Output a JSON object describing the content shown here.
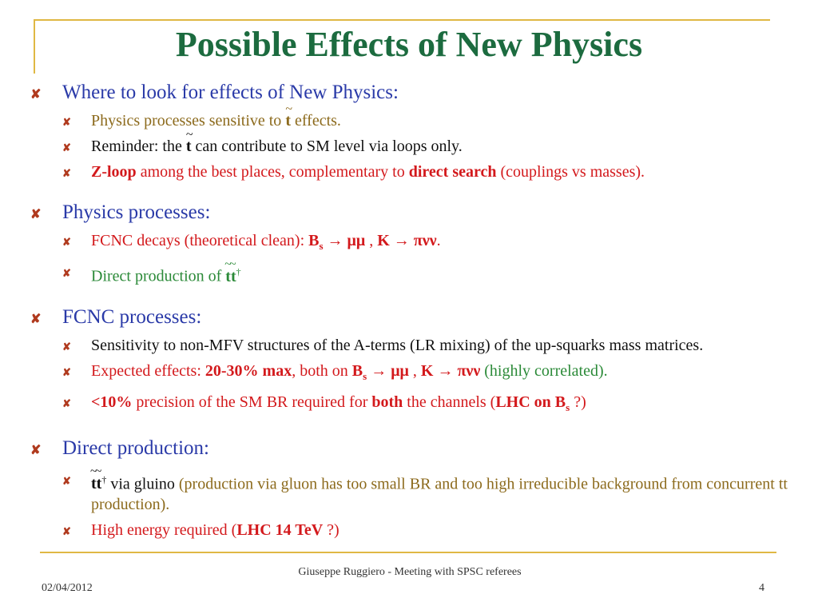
{
  "title": "Possible Effects of New Physics",
  "sections": [
    {
      "heading": "Where to look for effects of New Physics:",
      "s1": {
        "text_a": "Physics processes sensitive to ",
        "sym": "t",
        "text_b": " effects."
      },
      "s2": {
        "text_a": "Reminder: the ",
        "sym": "t",
        "text_b": " can contribute to SM level via loops only."
      },
      "s3": {
        "bold_a": "Z-loop",
        "text_a": " among the best places, complementary to ",
        "bold_b": "direct search",
        "text_b": " (couplings vs masses)."
      }
    },
    {
      "heading": "Physics processes:",
      "s1": {
        "text_a": "FCNC decays (theoretical clean): ",
        "bs": "B",
        "bs_sub": "s",
        "arrow": "→",
        "mumu": "μμ",
        "comma": " , ",
        "k": "K",
        "pinunu": "πνν",
        "end": "."
      },
      "s2": {
        "text_a": "Direct production of ",
        "sym": "tt",
        "dagger": "†"
      }
    },
    {
      "heading": "FCNC processes:",
      "s1": {
        "text": "Sensitivity to non-MFV structures of the A-terms (LR mixing) of the up-squarks mass matrices."
      },
      "s2": {
        "text_a": "Expected effects: ",
        "bold_a": "20-30% max",
        "text_b": ", both on ",
        "bs": "B",
        "bs_sub": "s",
        "arrow": "→",
        "mumu": "μμ",
        "comma": " , ",
        "k": "K",
        "pinunu": "πνν",
        "green": " (highly correlated)."
      },
      "s3": {
        "bold_a": "<10%",
        "text_a": " precision of the SM BR required for ",
        "bold_b": "both",
        "text_b": " the channels (",
        "bold_c": "LHC on B",
        "sub": "s",
        "text_c": " ?)"
      }
    },
    {
      "heading": "Direct production:",
      "s1": {
        "sym": "tt",
        "dagger": "†",
        "text_a": "  via gluino",
        "olive": " (production via gluon has too small BR and too high irreducible background from concurrent tt production)."
      },
      "s2": {
        "text_a": "High energy required (",
        "bold_a": "LHC 14 TeV",
        "text_b": "  ?)"
      }
    }
  ],
  "footer": {
    "date": "02/04/2012",
    "center": "Giuseppe Ruggiero - Meeting with SPSC referees",
    "page": "4"
  }
}
